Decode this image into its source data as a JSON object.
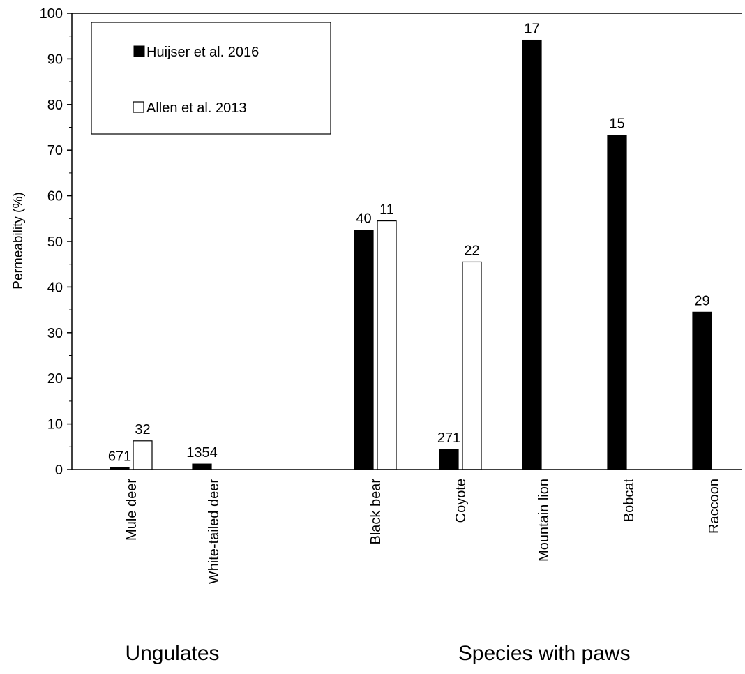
{
  "chart_data": {
    "type": "bar",
    "ylabel": "Permeability (%)",
    "ylim": [
      0,
      100
    ],
    "ytick_step": 10,
    "grid": false,
    "legend_position": "top-left",
    "categories": [
      "Mule deer",
      "White-tailed deer",
      "Black bear",
      "Coyote",
      "Mountain lion",
      "Bobcat",
      "Raccoon"
    ],
    "series": [
      {
        "name": "Huijser et al. 2016",
        "color": "#000000",
        "values": [
          0.4,
          1.2,
          52.5,
          4.4,
          94.1,
          73.3,
          34.5
        ],
        "labels": [
          "671",
          "1354",
          "40",
          "271",
          "17",
          "15",
          "29"
        ]
      },
      {
        "name": "Allen et al. 2013",
        "color": "#ffffff",
        "values": [
          6.3,
          null,
          54.5,
          45.5,
          null,
          null,
          null
        ],
        "labels": [
          "32",
          "",
          "11",
          "22",
          "",
          "",
          ""
        ]
      }
    ],
    "groups": [
      {
        "label": "Ungulates",
        "categories": [
          0,
          1
        ]
      },
      {
        "label": "Species with paws",
        "categories": [
          2,
          3,
          4,
          5,
          6
        ]
      }
    ]
  }
}
